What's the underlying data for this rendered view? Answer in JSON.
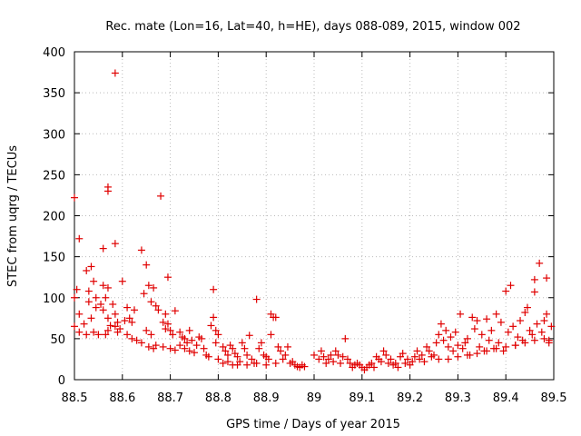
{
  "chart_data": {
    "type": "scatter",
    "title": "Rec. mate (Lon=16, Lat=40, h=HE), days 088-089, 2015, window 002",
    "xlabel": "GPS time / Days of year 2015",
    "ylabel": "STEC from uqrg / TECUs",
    "xlim": [
      88.5,
      89.5
    ],
    "ylim": [
      0,
      400
    ],
    "xticks": [
      "88.5",
      "88.6",
      "88.7",
      "88.8",
      "88.9",
      "89",
      "89.1",
      "89.2",
      "89.3",
      "89.4",
      "89.5"
    ],
    "yticks": [
      "0",
      "50",
      "100",
      "150",
      "200",
      "250",
      "300",
      "350",
      "400"
    ],
    "grid": true,
    "marker": "+",
    "color": "#e00000",
    "series": [
      {
        "name": "",
        "points": [
          [
            88.5,
            222
          ],
          [
            88.51,
            172
          ],
          [
            88.505,
            110
          ],
          [
            88.5,
            100
          ],
          [
            88.51,
            80
          ],
          [
            88.52,
            68
          ],
          [
            88.51,
            58
          ],
          [
            88.5,
            65
          ],
          [
            88.525,
            133
          ],
          [
            88.535,
            138
          ],
          [
            88.54,
            120
          ],
          [
            88.53,
            108
          ],
          [
            88.545,
            100
          ],
          [
            88.53,
            95
          ],
          [
            88.545,
            88
          ],
          [
            88.555,
            92
          ],
          [
            88.535,
            75
          ],
          [
            88.54,
            58
          ],
          [
            88.55,
            55
          ],
          [
            88.525,
            55
          ],
          [
            88.56,
            160
          ],
          [
            88.56,
            115
          ],
          [
            88.565,
            100
          ],
          [
            88.57,
            112
          ],
          [
            88.56,
            85
          ],
          [
            88.57,
            75
          ],
          [
            88.57,
            60
          ],
          [
            88.575,
            66
          ],
          [
            88.565,
            55
          ],
          [
            88.57,
            235
          ],
          [
            88.57,
            230
          ],
          [
            88.585,
            374
          ],
          [
            88.585,
            166
          ],
          [
            88.58,
            92
          ],
          [
            88.585,
            80
          ],
          [
            88.59,
            70
          ],
          [
            88.595,
            62
          ],
          [
            88.59,
            58
          ],
          [
            88.585,
            65
          ],
          [
            88.6,
            120
          ],
          [
            88.605,
            72
          ],
          [
            88.61,
            88
          ],
          [
            88.615,
            75
          ],
          [
            88.62,
            70
          ],
          [
            88.61,
            55
          ],
          [
            88.62,
            50
          ],
          [
            88.63,
            48
          ],
          [
            88.625,
            85
          ],
          [
            88.64,
            158
          ],
          [
            88.65,
            140
          ],
          [
            88.655,
            115
          ],
          [
            88.645,
            105
          ],
          [
            88.66,
            95
          ],
          [
            88.665,
            112
          ],
          [
            88.67,
            90
          ],
          [
            88.675,
            85
          ],
          [
            88.65,
            60
          ],
          [
            88.66,
            55
          ],
          [
            88.64,
            45
          ],
          [
            88.655,
            40
          ],
          [
            88.665,
            38
          ],
          [
            88.67,
            42
          ],
          [
            88.68,
            224
          ],
          [
            88.695,
            125
          ],
          [
            88.69,
            80
          ],
          [
            88.685,
            70
          ],
          [
            88.695,
            68
          ],
          [
            88.7,
            60
          ],
          [
            88.69,
            62
          ],
          [
            88.705,
            55
          ],
          [
            88.71,
            84
          ],
          [
            88.685,
            40
          ],
          [
            88.7,
            38
          ],
          [
            88.71,
            36
          ],
          [
            88.72,
            58
          ],
          [
            88.725,
            52
          ],
          [
            88.73,
            50
          ],
          [
            88.735,
            45
          ],
          [
            88.74,
            60
          ],
          [
            88.745,
            48
          ],
          [
            88.72,
            42
          ],
          [
            88.73,
            38
          ],
          [
            88.74,
            35
          ],
          [
            88.75,
            33
          ],
          [
            88.755,
            42
          ],
          [
            88.76,
            52
          ],
          [
            88.765,
            50
          ],
          [
            88.77,
            38
          ],
          [
            88.775,
            30
          ],
          [
            88.78,
            28
          ],
          [
            88.785,
            66
          ],
          [
            88.79,
            110
          ],
          [
            88.79,
            76
          ],
          [
            88.795,
            60
          ],
          [
            88.8,
            55
          ],
          [
            88.795,
            45
          ],
          [
            88.8,
            25
          ],
          [
            88.81,
            40
          ],
          [
            88.815,
            35
          ],
          [
            88.82,
            30
          ],
          [
            88.825,
            42
          ],
          [
            88.83,
            38
          ],
          [
            88.835,
            32
          ],
          [
            88.84,
            28
          ],
          [
            88.845,
            22
          ],
          [
            88.85,
            45
          ],
          [
            88.855,
            38
          ],
          [
            88.86,
            30
          ],
          [
            88.865,
            54
          ],
          [
            88.87,
            25
          ],
          [
            88.875,
            20
          ],
          [
            88.88,
            98
          ],
          [
            88.885,
            38
          ],
          [
            88.89,
            45
          ],
          [
            88.895,
            30
          ],
          [
            88.9,
            28
          ],
          [
            88.905,
            25
          ],
          [
            88.91,
            80
          ],
          [
            88.915,
            76
          ],
          [
            88.92,
            76
          ],
          [
            88.925,
            40
          ],
          [
            88.93,
            35
          ],
          [
            88.91,
            55
          ],
          [
            88.935,
            25
          ],
          [
            88.94,
            30
          ],
          [
            88.945,
            40
          ],
          [
            88.95,
            20
          ],
          [
            88.955,
            22
          ],
          [
            88.96,
            18
          ],
          [
            88.965,
            16
          ],
          [
            88.97,
            15
          ],
          [
            88.975,
            18
          ],
          [
            88.98,
            16
          ],
          [
            88.81,
            20
          ],
          [
            88.82,
            22
          ],
          [
            88.83,
            18
          ],
          [
            88.84,
            18
          ],
          [
            88.86,
            18
          ],
          [
            88.88,
            20
          ],
          [
            88.9,
            18
          ],
          [
            88.92,
            20
          ],
          [
            89.0,
            30
          ],
          [
            89.01,
            25
          ],
          [
            89.015,
            35
          ],
          [
            89.02,
            28
          ],
          [
            89.025,
            20
          ],
          [
            89.03,
            25
          ],
          [
            89.035,
            30
          ],
          [
            89.04,
            22
          ],
          [
            89.045,
            35
          ],
          [
            89.05,
            30
          ],
          [
            89.055,
            20
          ],
          [
            89.06,
            28
          ],
          [
            89.065,
            50
          ],
          [
            89.07,
            25
          ],
          [
            89.075,
            20
          ],
          [
            89.08,
            15
          ],
          [
            89.085,
            18
          ],
          [
            89.09,
            20
          ],
          [
            89.095,
            18
          ],
          [
            89.1,
            15
          ],
          [
            89.105,
            12
          ],
          [
            89.11,
            15
          ],
          [
            89.115,
            18
          ],
          [
            89.12,
            20
          ],
          [
            89.125,
            15
          ],
          [
            89.13,
            28
          ],
          [
            89.135,
            25
          ],
          [
            89.14,
            22
          ],
          [
            89.145,
            35
          ],
          [
            89.15,
            30
          ],
          [
            89.155,
            20
          ],
          [
            89.16,
            25
          ],
          [
            89.165,
            18
          ],
          [
            89.17,
            20
          ],
          [
            89.175,
            15
          ],
          [
            89.18,
            28
          ],
          [
            89.185,
            32
          ],
          [
            89.19,
            20
          ],
          [
            89.195,
            25
          ],
          [
            89.2,
            18
          ],
          [
            89.205,
            22
          ],
          [
            89.21,
            28
          ],
          [
            89.215,
            35
          ],
          [
            89.22,
            25
          ],
          [
            89.225,
            30
          ],
          [
            89.23,
            22
          ],
          [
            89.235,
            40
          ],
          [
            89.24,
            35
          ],
          [
            89.245,
            28
          ],
          [
            89.25,
            30
          ],
          [
            89.255,
            45
          ],
          [
            89.26,
            55
          ],
          [
            89.265,
            68
          ],
          [
            89.27,
            48
          ],
          [
            89.275,
            60
          ],
          [
            89.28,
            40
          ],
          [
            89.285,
            52
          ],
          [
            89.29,
            35
          ],
          [
            89.295,
            58
          ],
          [
            89.3,
            42
          ],
          [
            89.305,
            80
          ],
          [
            89.31,
            38
          ],
          [
            89.315,
            45
          ],
          [
            89.32,
            50
          ],
          [
            89.325,
            30
          ],
          [
            89.33,
            76
          ],
          [
            89.335,
            62
          ],
          [
            89.34,
            72
          ],
          [
            89.345,
            40
          ],
          [
            89.35,
            55
          ],
          [
            89.355,
            35
          ],
          [
            89.36,
            74
          ],
          [
            89.365,
            48
          ],
          [
            89.37,
            60
          ],
          [
            89.375,
            38
          ],
          [
            89.38,
            80
          ],
          [
            89.385,
            45
          ],
          [
            89.39,
            70
          ],
          [
            89.395,
            35
          ],
          [
            89.4,
            108
          ],
          [
            89.405,
            58
          ],
          [
            89.41,
            115
          ],
          [
            89.415,
            65
          ],
          [
            89.42,
            42
          ],
          [
            89.425,
            52
          ],
          [
            89.43,
            72
          ],
          [
            89.435,
            48
          ],
          [
            89.44,
            82
          ],
          [
            89.445,
            88
          ],
          [
            89.45,
            60
          ],
          [
            89.455,
            55
          ],
          [
            89.46,
            107
          ],
          [
            89.46,
            122
          ],
          [
            89.465,
            68
          ],
          [
            89.47,
            142
          ],
          [
            89.475,
            58
          ],
          [
            89.48,
            72
          ],
          [
            89.485,
            124
          ],
          [
            89.485,
            80
          ],
          [
            89.49,
            48
          ],
          [
            89.495,
            65
          ],
          [
            89.49,
            45
          ],
          [
            89.26,
            25
          ],
          [
            89.28,
            25
          ],
          [
            89.3,
            28
          ],
          [
            89.32,
            30
          ],
          [
            89.34,
            32
          ],
          [
            89.36,
            35
          ],
          [
            89.38,
            38
          ],
          [
            89.4,
            40
          ],
          [
            89.42,
            42
          ],
          [
            89.44,
            45
          ],
          [
            89.46,
            48
          ],
          [
            89.48,
            50
          ]
        ]
      }
    ]
  }
}
